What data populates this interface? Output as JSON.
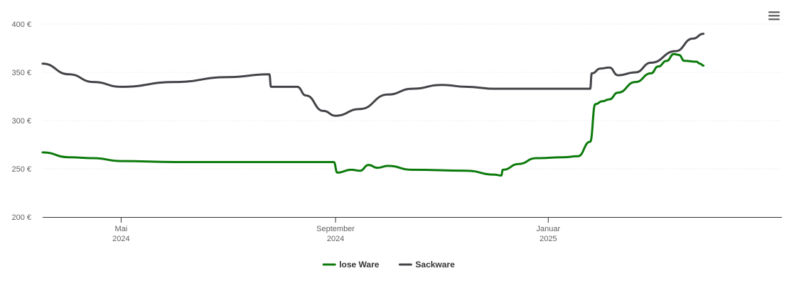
{
  "chart_data": {
    "type": "line",
    "title": "",
    "xlabel": "",
    "ylabel": "",
    "ylim": [
      200,
      400
    ],
    "y_ticks": [
      {
        "value": 200,
        "label": "200 €"
      },
      {
        "value": 250,
        "label": "250 €"
      },
      {
        "value": 300,
        "label": "300 €"
      },
      {
        "value": 350,
        "label": "350 €"
      },
      {
        "value": 400,
        "label": "400 €"
      }
    ],
    "x_range": [
      "2024-03-17",
      "2025-05-15"
    ],
    "x_ticks": [
      {
        "date": "2024-05-01",
        "line1": "Mai",
        "line2": "2024"
      },
      {
        "date": "2024-09-01",
        "line1": "September",
        "line2": "2024"
      },
      {
        "date": "2025-01-01",
        "line1": "Januar",
        "line2": "2025"
      }
    ],
    "grid": true,
    "legend_position": "bottom-center",
    "menu_icon": "hamburger-menu-icon",
    "series": [
      {
        "name": "lose Ware",
        "color": "#0b7a0b",
        "points": [
          [
            "2024-03-17",
            267
          ],
          [
            "2024-04-01",
            262
          ],
          [
            "2024-04-15",
            261
          ],
          [
            "2024-05-01",
            258
          ],
          [
            "2024-06-01",
            257
          ],
          [
            "2024-07-01",
            257
          ],
          [
            "2024-08-01",
            257
          ],
          [
            "2024-08-31",
            257
          ],
          [
            "2024-09-02",
            246
          ],
          [
            "2024-09-10",
            249
          ],
          [
            "2024-09-15",
            248
          ],
          [
            "2024-09-20",
            254
          ],
          [
            "2024-09-25",
            251
          ],
          [
            "2024-10-01",
            253
          ],
          [
            "2024-10-15",
            249
          ],
          [
            "2024-11-15",
            248
          ],
          [
            "2024-12-01",
            244
          ],
          [
            "2024-12-05",
            243
          ],
          [
            "2024-12-06",
            249
          ],
          [
            "2024-12-15",
            255
          ],
          [
            "2024-12-25",
            261
          ],
          [
            "2025-01-10",
            262
          ],
          [
            "2025-01-18",
            263
          ],
          [
            "2025-01-25",
            278
          ],
          [
            "2025-01-28",
            317
          ],
          [
            "2025-02-01",
            320
          ],
          [
            "2025-02-05",
            322
          ],
          [
            "2025-02-10",
            329
          ],
          [
            "2025-02-20",
            340
          ],
          [
            "2025-03-01",
            349
          ],
          [
            "2025-03-05",
            356
          ],
          [
            "2025-03-10",
            362
          ],
          [
            "2025-03-14",
            369
          ],
          [
            "2025-03-17",
            368
          ],
          [
            "2025-03-20",
            362
          ],
          [
            "2025-03-27",
            361
          ],
          [
            "2025-03-29",
            359
          ],
          [
            "2025-03-31",
            357
          ]
        ]
      },
      {
        "name": "Sackware",
        "color": "#434348",
        "points": [
          [
            "2024-03-17",
            359
          ],
          [
            "2024-04-01",
            348
          ],
          [
            "2024-04-15",
            340
          ],
          [
            "2024-05-01",
            335
          ],
          [
            "2024-06-01",
            340
          ],
          [
            "2024-07-01",
            345
          ],
          [
            "2024-07-25",
            348
          ],
          [
            "2024-07-26",
            335
          ],
          [
            "2024-08-10",
            335
          ],
          [
            "2024-08-15",
            326
          ],
          [
            "2024-08-25",
            310
          ],
          [
            "2024-09-01",
            305
          ],
          [
            "2024-09-15",
            312
          ],
          [
            "2024-10-01",
            327
          ],
          [
            "2024-10-15",
            333
          ],
          [
            "2024-11-01",
            337
          ],
          [
            "2024-11-15",
            335
          ],
          [
            "2024-12-01",
            333
          ],
          [
            "2025-01-01",
            333
          ],
          [
            "2025-01-25",
            333
          ],
          [
            "2025-01-26",
            349
          ],
          [
            "2025-01-31",
            354
          ],
          [
            "2025-02-05",
            355
          ],
          [
            "2025-02-10",
            347
          ],
          [
            "2025-02-20",
            350
          ],
          [
            "2025-03-01",
            360
          ],
          [
            "2025-03-15",
            372
          ],
          [
            "2025-03-25",
            385
          ],
          [
            "2025-03-31",
            390
          ]
        ]
      }
    ]
  }
}
